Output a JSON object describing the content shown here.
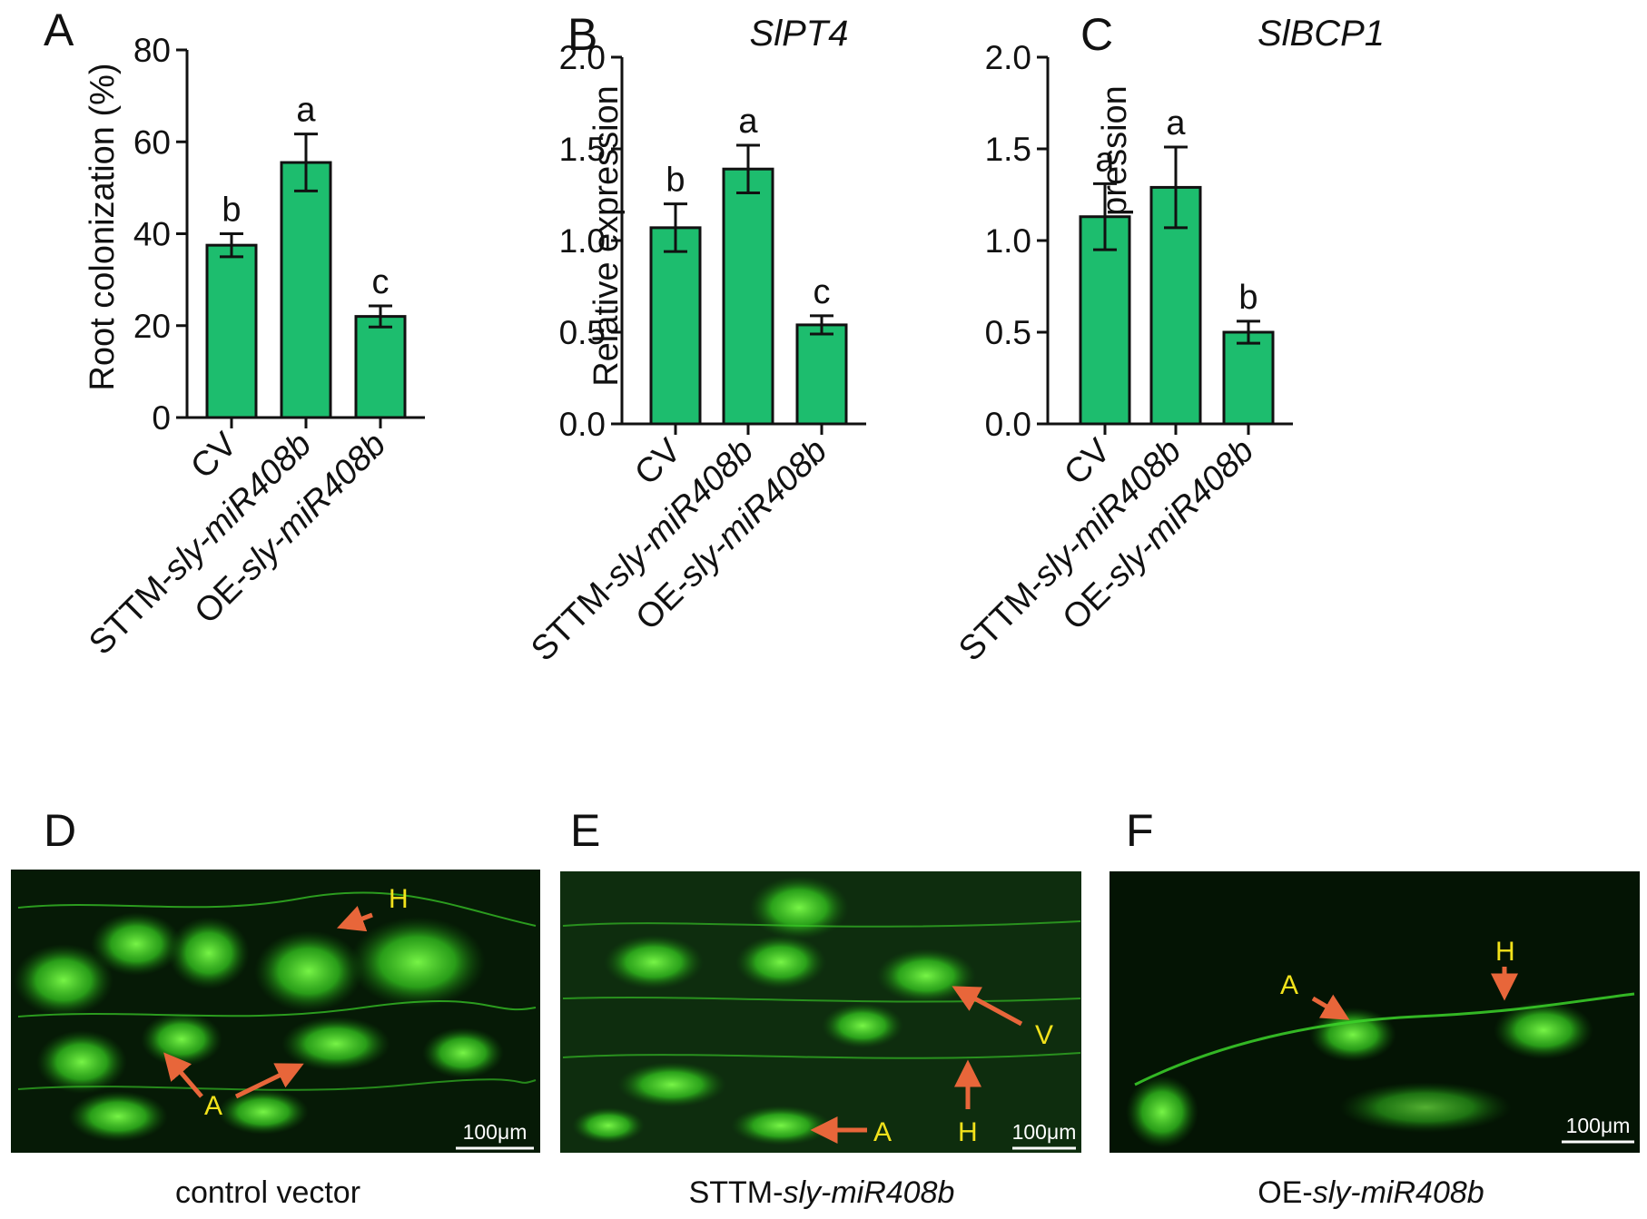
{
  "colors": {
    "bar": "#1dbd6e",
    "arrow": "#e8663a",
    "label": "#f2e21b",
    "axis": "#111111"
  },
  "chart_data": [
    {
      "type": "bar",
      "panel": "A",
      "title": "",
      "ylabel": "Root colonization (%)",
      "ylim": [
        0,
        80
      ],
      "yticks": [
        "0",
        "20",
        "40",
        "60",
        "80"
      ],
      "categories": [
        "CV",
        "STTM-sly-miR408b",
        "OE-sly-miR408b"
      ],
      "values": [
        37.5,
        55.5,
        22
      ],
      "errors": [
        2.5,
        6.2,
        2.3
      ],
      "significance": [
        "b",
        "a",
        "c"
      ]
    },
    {
      "type": "bar",
      "panel": "B",
      "title": "SlPT4",
      "ylabel": "Relative expression",
      "ylim": [
        0,
        2.0
      ],
      "yticks": [
        "0.0",
        "0.5",
        "1.0",
        "1.5",
        "2.0"
      ],
      "categories": [
        "CV",
        "STTM-sly-miR408b",
        "OE-sly-miR408b"
      ],
      "values": [
        1.07,
        1.39,
        0.54
      ],
      "errors": [
        0.13,
        0.13,
        0.05
      ],
      "significance": [
        "b",
        "a",
        "c"
      ]
    },
    {
      "type": "bar",
      "panel": "C",
      "title": "SlBCP1",
      "ylabel": "Relative expression",
      "ylim": [
        0,
        2.0
      ],
      "yticks": [
        "0.0",
        "0.5",
        "1.0",
        "1.5",
        "2.0"
      ],
      "categories": [
        "CV",
        "STTM-sly-miR408b",
        "OE-sly-miR408b"
      ],
      "values": [
        1.13,
        1.29,
        0.5
      ],
      "errors": [
        0.18,
        0.22,
        0.06
      ],
      "significance": [
        "a",
        "a",
        "b"
      ]
    }
  ],
  "category_parts": [
    {
      "plain": "CV",
      "italic": ""
    },
    {
      "plain": "STTM-",
      "italic": "sly-miR408b"
    },
    {
      "plain": "OE-",
      "italic": "sly-miR408b"
    }
  ],
  "micrographs": [
    {
      "panel": "D",
      "caption_plain": "control vector",
      "caption_italic": "",
      "scale_bar": "100μm",
      "labels": [
        "H",
        "A"
      ]
    },
    {
      "panel": "E",
      "caption_plain": "STTM-",
      "caption_italic": "sly-miR408b",
      "scale_bar": "100μm",
      "labels": [
        "V",
        "A",
        "H"
      ]
    },
    {
      "panel": "F",
      "caption_plain": "OE-",
      "caption_italic": "sly-miR408b",
      "scale_bar": "100μm",
      "labels": [
        "A",
        "H"
      ]
    }
  ]
}
